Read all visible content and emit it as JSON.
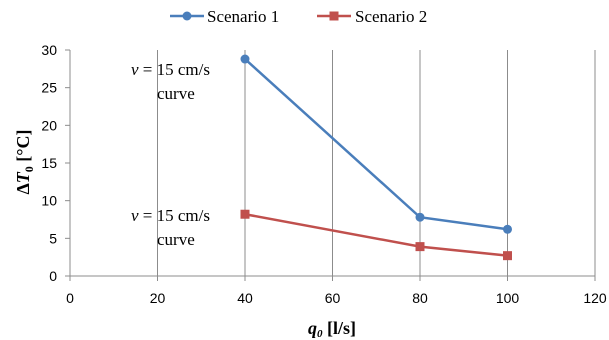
{
  "chart_data": {
    "type": "line",
    "x": [
      40,
      80,
      100
    ],
    "series": [
      {
        "name": "Scenario 1",
        "values": [
          28.8,
          7.8,
          6.2
        ],
        "color": "#4a7ebb",
        "marker": "circle"
      },
      {
        "name": "Scenario 2",
        "values": [
          8.2,
          3.9,
          2.7
        ],
        "color": "#c0504d",
        "marker": "square"
      }
    ],
    "xlim": [
      0,
      120
    ],
    "ylim": [
      0,
      30
    ],
    "xticks": [
      0,
      20,
      40,
      60,
      80,
      100,
      120
    ],
    "yticks": [
      0,
      5,
      10,
      15,
      20,
      25,
      30
    ],
    "xlabel_main": "q",
    "xlabel_sub": "0",
    "xlabel_unit": " [l/s]",
    "ylabel_prefix": "Δ",
    "ylabel_main": "T",
    "ylabel_sub": "0",
    "ylabel_unit": " [°C]",
    "grid": "vertical",
    "legend_position": "top",
    "annotations": [
      {
        "var": "v",
        "rest": " = 15 cm/s",
        "line2": "curve"
      },
      {
        "var": "v",
        "rest": " = 15 cm/s",
        "line2": "curve"
      }
    ]
  }
}
